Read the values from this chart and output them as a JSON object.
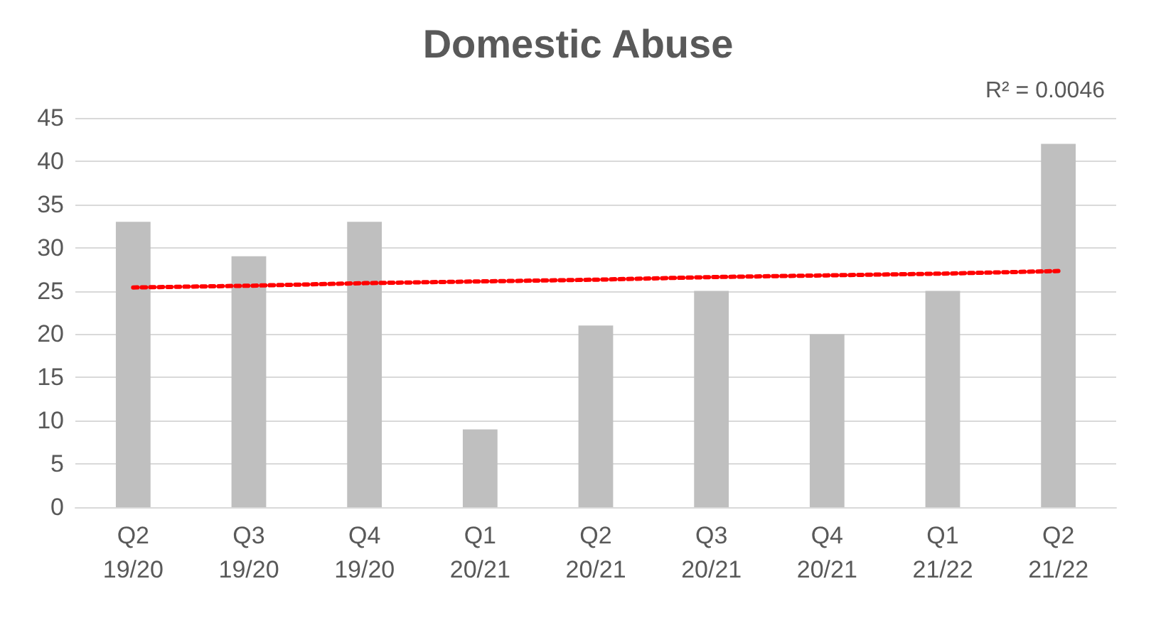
{
  "chart_data": {
    "type": "bar",
    "title": "Domestic Abuse",
    "categories": [
      "Q2\n19/20",
      "Q3\n19/20",
      "Q4\n19/20",
      "Q1\n20/21",
      "Q2\n20/21",
      "Q3\n20/21",
      "Q4\n20/21",
      "Q1\n21/22",
      "Q2\n21/22"
    ],
    "series": [
      {
        "color": "#bfbfbf",
        "values": [
          33,
          29,
          33,
          9,
          21,
          25,
          20,
          25,
          42
        ]
      },
      {
        "type": "line",
        "color": "#ff0000",
        "line_style": "dotted",
        "marker": "none",
        "values": [
          25.4,
          25.6,
          25.9,
          26.1,
          26.3,
          26.6,
          26.8,
          27.0,
          27.3
        ]
      }
    ],
    "ylim": [
      0,
      45
    ],
    "yticks": [
      0,
      5,
      10,
      15,
      20,
      25,
      30,
      35,
      40,
      45
    ],
    "grid": "y",
    "annotations": [
      "R² = 0.0046"
    ]
  }
}
